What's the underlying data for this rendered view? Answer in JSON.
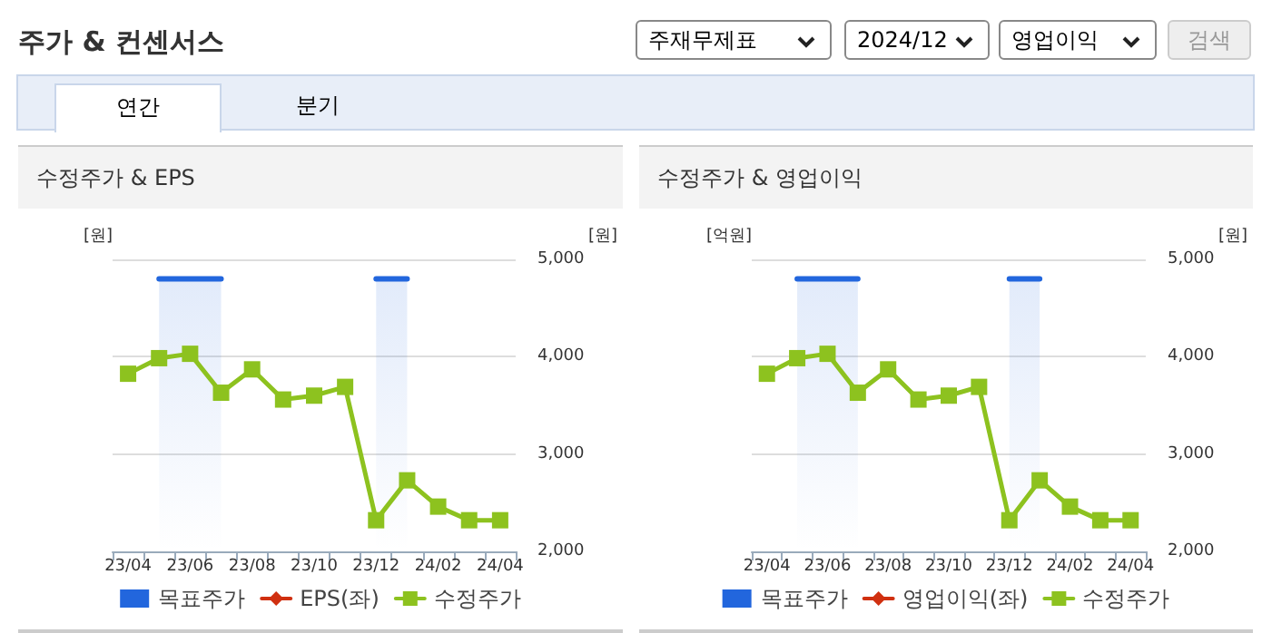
{
  "chart_data": [
    {
      "type": "other",
      "title": "주가 & 컨센서스",
      "annotations": [
        "주재무제표",
        "2024/12",
        "영업이익",
        "검색",
        "연간",
        "분기"
      ]
    },
    {
      "type": "line",
      "title": "수정주가 & EPS",
      "ylabel": "[원]",
      "y2label": "[원]",
      "categories": [
        "23/04",
        null,
        "23/06",
        null,
        "23/08",
        null,
        "23/10",
        null,
        "23/12",
        null,
        "24/02",
        null,
        "24/04"
      ],
      "series": [
        {
          "name": "목표주가",
          "type": "area",
          "color": "#2266dd",
          "axis": "y2",
          "marker": "none",
          "values": [
            null,
            4800,
            4800,
            4800,
            null,
            null,
            null,
            null,
            4800,
            4800,
            null,
            null,
            null
          ]
        },
        {
          "name": "EPS(좌)",
          "color": "#d03010",
          "marker": "diamond",
          "values": [
            null,
            null,
            null,
            null,
            null,
            null,
            null,
            null,
            null,
            null,
            null,
            null,
            null
          ]
        },
        {
          "name": "수정주가",
          "color": "#8dc21f",
          "axis": "y2",
          "marker": "square",
          "values": [
            3825,
            3985,
            4030,
            3630,
            3870,
            3560,
            3600,
            3690,
            2320,
            2730,
            2460,
            2320,
            2320
          ]
        }
      ],
      "y2lim": [
        2000,
        5000
      ],
      "y2ticks": [
        {
          "value": 2000,
          "label": "2,000"
        },
        {
          "value": 3000,
          "label": "3,000"
        },
        {
          "value": 4000,
          "label": "4,000"
        },
        {
          "value": 5000,
          "label": "5,000"
        }
      ],
      "grid": "y",
      "legend": "bottom"
    },
    {
      "type": "line",
      "title": "수정주가 & 영업이익",
      "ylabel": "[억원]",
      "y2label": "[원]",
      "categories": [
        "23/04",
        null,
        "23/06",
        null,
        "23/08",
        null,
        "23/10",
        null,
        "23/12",
        null,
        "24/02",
        null,
        "24/04"
      ],
      "series": [
        {
          "name": "목표주가",
          "type": "area",
          "color": "#2266dd",
          "axis": "y2",
          "marker": "none",
          "values": [
            null,
            4800,
            4800,
            4800,
            null,
            null,
            null,
            null,
            4800,
            4800,
            null,
            null,
            null
          ]
        },
        {
          "name": "영업이익(좌)",
          "color": "#d03010",
          "marker": "diamond",
          "values": [
            null,
            null,
            null,
            null,
            null,
            null,
            null,
            null,
            null,
            null,
            null,
            null,
            null
          ]
        },
        {
          "name": "수정주가",
          "color": "#8dc21f",
          "axis": "y2",
          "marker": "square",
          "values": [
            3825,
            3985,
            4030,
            3630,
            3870,
            3560,
            3600,
            3690,
            2320,
            2730,
            2460,
            2320,
            2320
          ]
        }
      ],
      "y2lim": [
        2000,
        5000
      ],
      "y2ticks": [
        {
          "value": 2000,
          "label": "2,000"
        },
        {
          "value": 3000,
          "label": "3,000"
        },
        {
          "value": 4000,
          "label": "4,000"
        },
        {
          "value": 5000,
          "label": "5,000"
        }
      ],
      "grid": "y",
      "legend": "bottom"
    }
  ]
}
